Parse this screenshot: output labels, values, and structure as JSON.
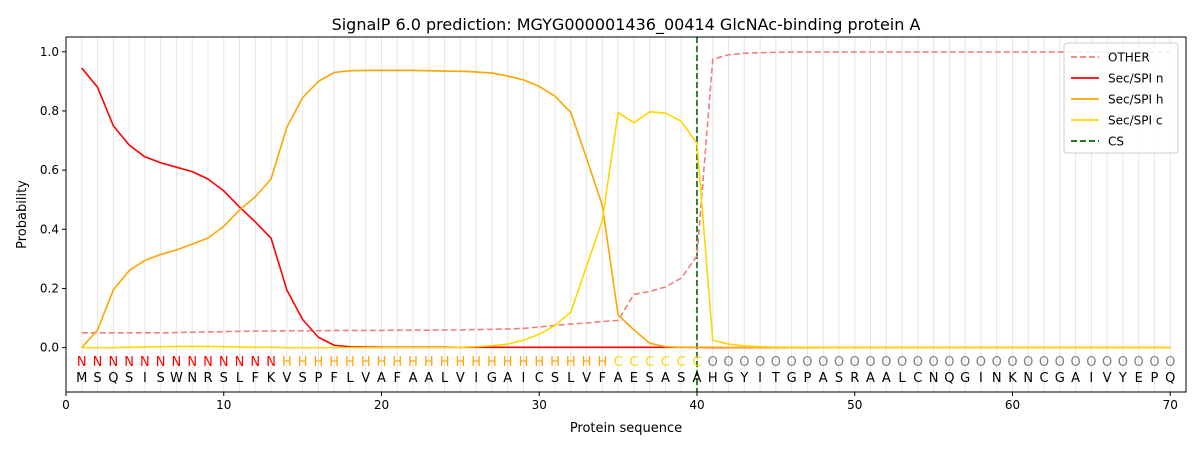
{
  "chart_data": {
    "type": "line",
    "title": "SignalP 6.0 prediction: MGYG000001436_00414 GlcNAc-binding protein A",
    "xlabel": "Protein sequence",
    "ylabel": "Probability",
    "xlim": [
      0,
      71
    ],
    "ylim": [
      -0.15,
      1.05
    ],
    "xticks": [
      0,
      10,
      20,
      30,
      40,
      50,
      60,
      70
    ],
    "yticks": [
      0.0,
      0.2,
      0.4,
      0.6,
      0.8,
      1.0
    ],
    "grid": "vertical lines at every residue",
    "legend_position": "top-right",
    "sequence": [
      "M",
      "S",
      "Q",
      "S",
      "I",
      "S",
      "W",
      "N",
      "R",
      "S",
      "L",
      "F",
      "K",
      "V",
      "S",
      "P",
      "F",
      "L",
      "V",
      "A",
      "F",
      "A",
      "A",
      "L",
      "V",
      "I",
      "G",
      "A",
      "I",
      "C",
      "S",
      "L",
      "V",
      "F",
      "A",
      "E",
      "S",
      "A",
      "S",
      "A",
      "H",
      "G",
      "Y",
      "I",
      "T",
      "G",
      "P",
      "A",
      "S",
      "R",
      "A",
      "A",
      "L",
      "C",
      "N",
      "Q",
      "G",
      "I",
      "N",
      "K",
      "N",
      "C",
      "G",
      "A",
      "I",
      "V",
      "Y",
      "E",
      "P",
      "Q"
    ],
    "labels": [
      "N",
      "N",
      "N",
      "N",
      "N",
      "N",
      "N",
      "N",
      "N",
      "N",
      "N",
      "N",
      "N",
      "H",
      "H",
      "H",
      "H",
      "H",
      "H",
      "H",
      "H",
      "H",
      "H",
      "H",
      "H",
      "H",
      "H",
      "H",
      "H",
      "H",
      "H",
      "H",
      "H",
      "H",
      "C",
      "C",
      "C",
      "C",
      "C",
      "C",
      "O",
      "O",
      "O",
      "O",
      "O",
      "O",
      "O",
      "O",
      "O",
      "O",
      "O",
      "O",
      "O",
      "O",
      "O",
      "O",
      "O",
      "O",
      "O",
      "O",
      "O",
      "O",
      "O",
      "O",
      "O",
      "O",
      "O",
      "O",
      "O",
      "O"
    ],
    "label_colors": {
      "N": "#ff0000",
      "H": "#ffa500",
      "C": "#ffd700",
      "O": "#808080"
    },
    "cleavage_site": 40,
    "series": [
      {
        "name": "OTHER",
        "color": "#f08080",
        "dash": "dashed",
        "values": [
          0.05,
          0.05,
          0.05,
          0.05,
          0.05,
          0.05,
          0.051,
          0.052,
          0.053,
          0.054,
          0.055,
          0.056,
          0.056,
          0.057,
          0.057,
          0.057,
          0.058,
          0.058,
          0.058,
          0.058,
          0.059,
          0.059,
          0.059,
          0.06,
          0.06,
          0.061,
          0.062,
          0.063,
          0.065,
          0.07,
          0.075,
          0.08,
          0.083,
          0.088,
          0.092,
          0.18,
          0.19,
          0.205,
          0.235,
          0.31,
          0.975,
          0.99,
          0.995,
          0.997,
          0.998,
          0.999,
          0.999,
          0.999,
          0.999,
          0.999,
          0.999,
          0.999,
          0.999,
          0.999,
          0.999,
          0.999,
          0.999,
          0.999,
          0.999,
          0.999,
          0.999,
          0.999,
          0.999,
          0.999,
          0.999,
          0.999,
          0.999,
          0.999,
          0.999,
          0.999
        ]
      },
      {
        "name": "Sec/SPI n",
        "color": "#ff0000",
        "dash": "solid",
        "values": [
          0.945,
          0.88,
          0.75,
          0.685,
          0.645,
          0.625,
          0.61,
          0.595,
          0.57,
          0.53,
          0.475,
          0.425,
          0.37,
          0.195,
          0.095,
          0.035,
          0.008,
          0.003,
          0.002,
          0.001,
          0.001,
          0.001,
          0.001,
          0.001,
          0.001,
          0.001,
          0.001,
          0.001,
          0.001,
          0.001,
          0.001,
          0.001,
          0.001,
          0.001,
          0.001,
          0.001,
          0.001,
          0.001,
          0.001,
          0.001,
          0,
          0,
          0,
          0,
          0,
          0,
          0,
          0,
          0,
          0,
          0,
          0,
          0,
          0,
          0,
          0,
          0,
          0,
          0,
          0,
          0,
          0,
          0,
          0,
          0,
          0,
          0,
          0,
          0,
          0
        ]
      },
      {
        "name": "Sec/SPI h",
        "color": "#ffa500",
        "dash": "solid",
        "values": [
          0.0,
          0.06,
          0.195,
          0.26,
          0.295,
          0.315,
          0.33,
          0.35,
          0.37,
          0.41,
          0.465,
          0.51,
          0.57,
          0.745,
          0.845,
          0.9,
          0.93,
          0.936,
          0.937,
          0.937,
          0.937,
          0.937,
          0.936,
          0.935,
          0.934,
          0.932,
          0.928,
          0.918,
          0.905,
          0.883,
          0.85,
          0.795,
          0.64,
          0.48,
          0.11,
          0.06,
          0.015,
          0.003,
          0.001,
          0.001,
          0.001,
          0,
          0,
          0,
          0,
          0,
          0,
          0,
          0,
          0,
          0,
          0,
          0,
          0,
          0,
          0,
          0,
          0,
          0,
          0,
          0,
          0,
          0,
          0,
          0,
          0,
          0,
          0,
          0,
          0
        ]
      },
      {
        "name": "Sec/SPI c",
        "color": "#ffd700",
        "dash": "solid",
        "values": [
          0.0,
          0.0,
          0.0,
          0.001,
          0.002,
          0.003,
          0.004,
          0.004,
          0.004,
          0.003,
          0.002,
          0.001,
          0.001,
          0.0,
          0.0,
          0.0,
          0.0,
          0.0,
          0.0,
          0.0,
          0.0,
          0.0,
          0.0,
          0.0,
          0.001,
          0.003,
          0.006,
          0.012,
          0.025,
          0.045,
          0.075,
          0.12,
          0.275,
          0.43,
          0.795,
          0.76,
          0.797,
          0.793,
          0.765,
          0.69,
          0.025,
          0.012,
          0.006,
          0.003,
          0.002,
          0.001,
          0.001,
          0,
          0,
          0,
          0,
          0,
          0,
          0,
          0,
          0,
          0,
          0,
          0,
          0,
          0,
          0,
          0,
          0,
          0,
          0,
          0,
          0,
          0,
          0
        ]
      },
      {
        "name": "CS",
        "color": "#006400",
        "dash": "dashed"
      }
    ]
  }
}
